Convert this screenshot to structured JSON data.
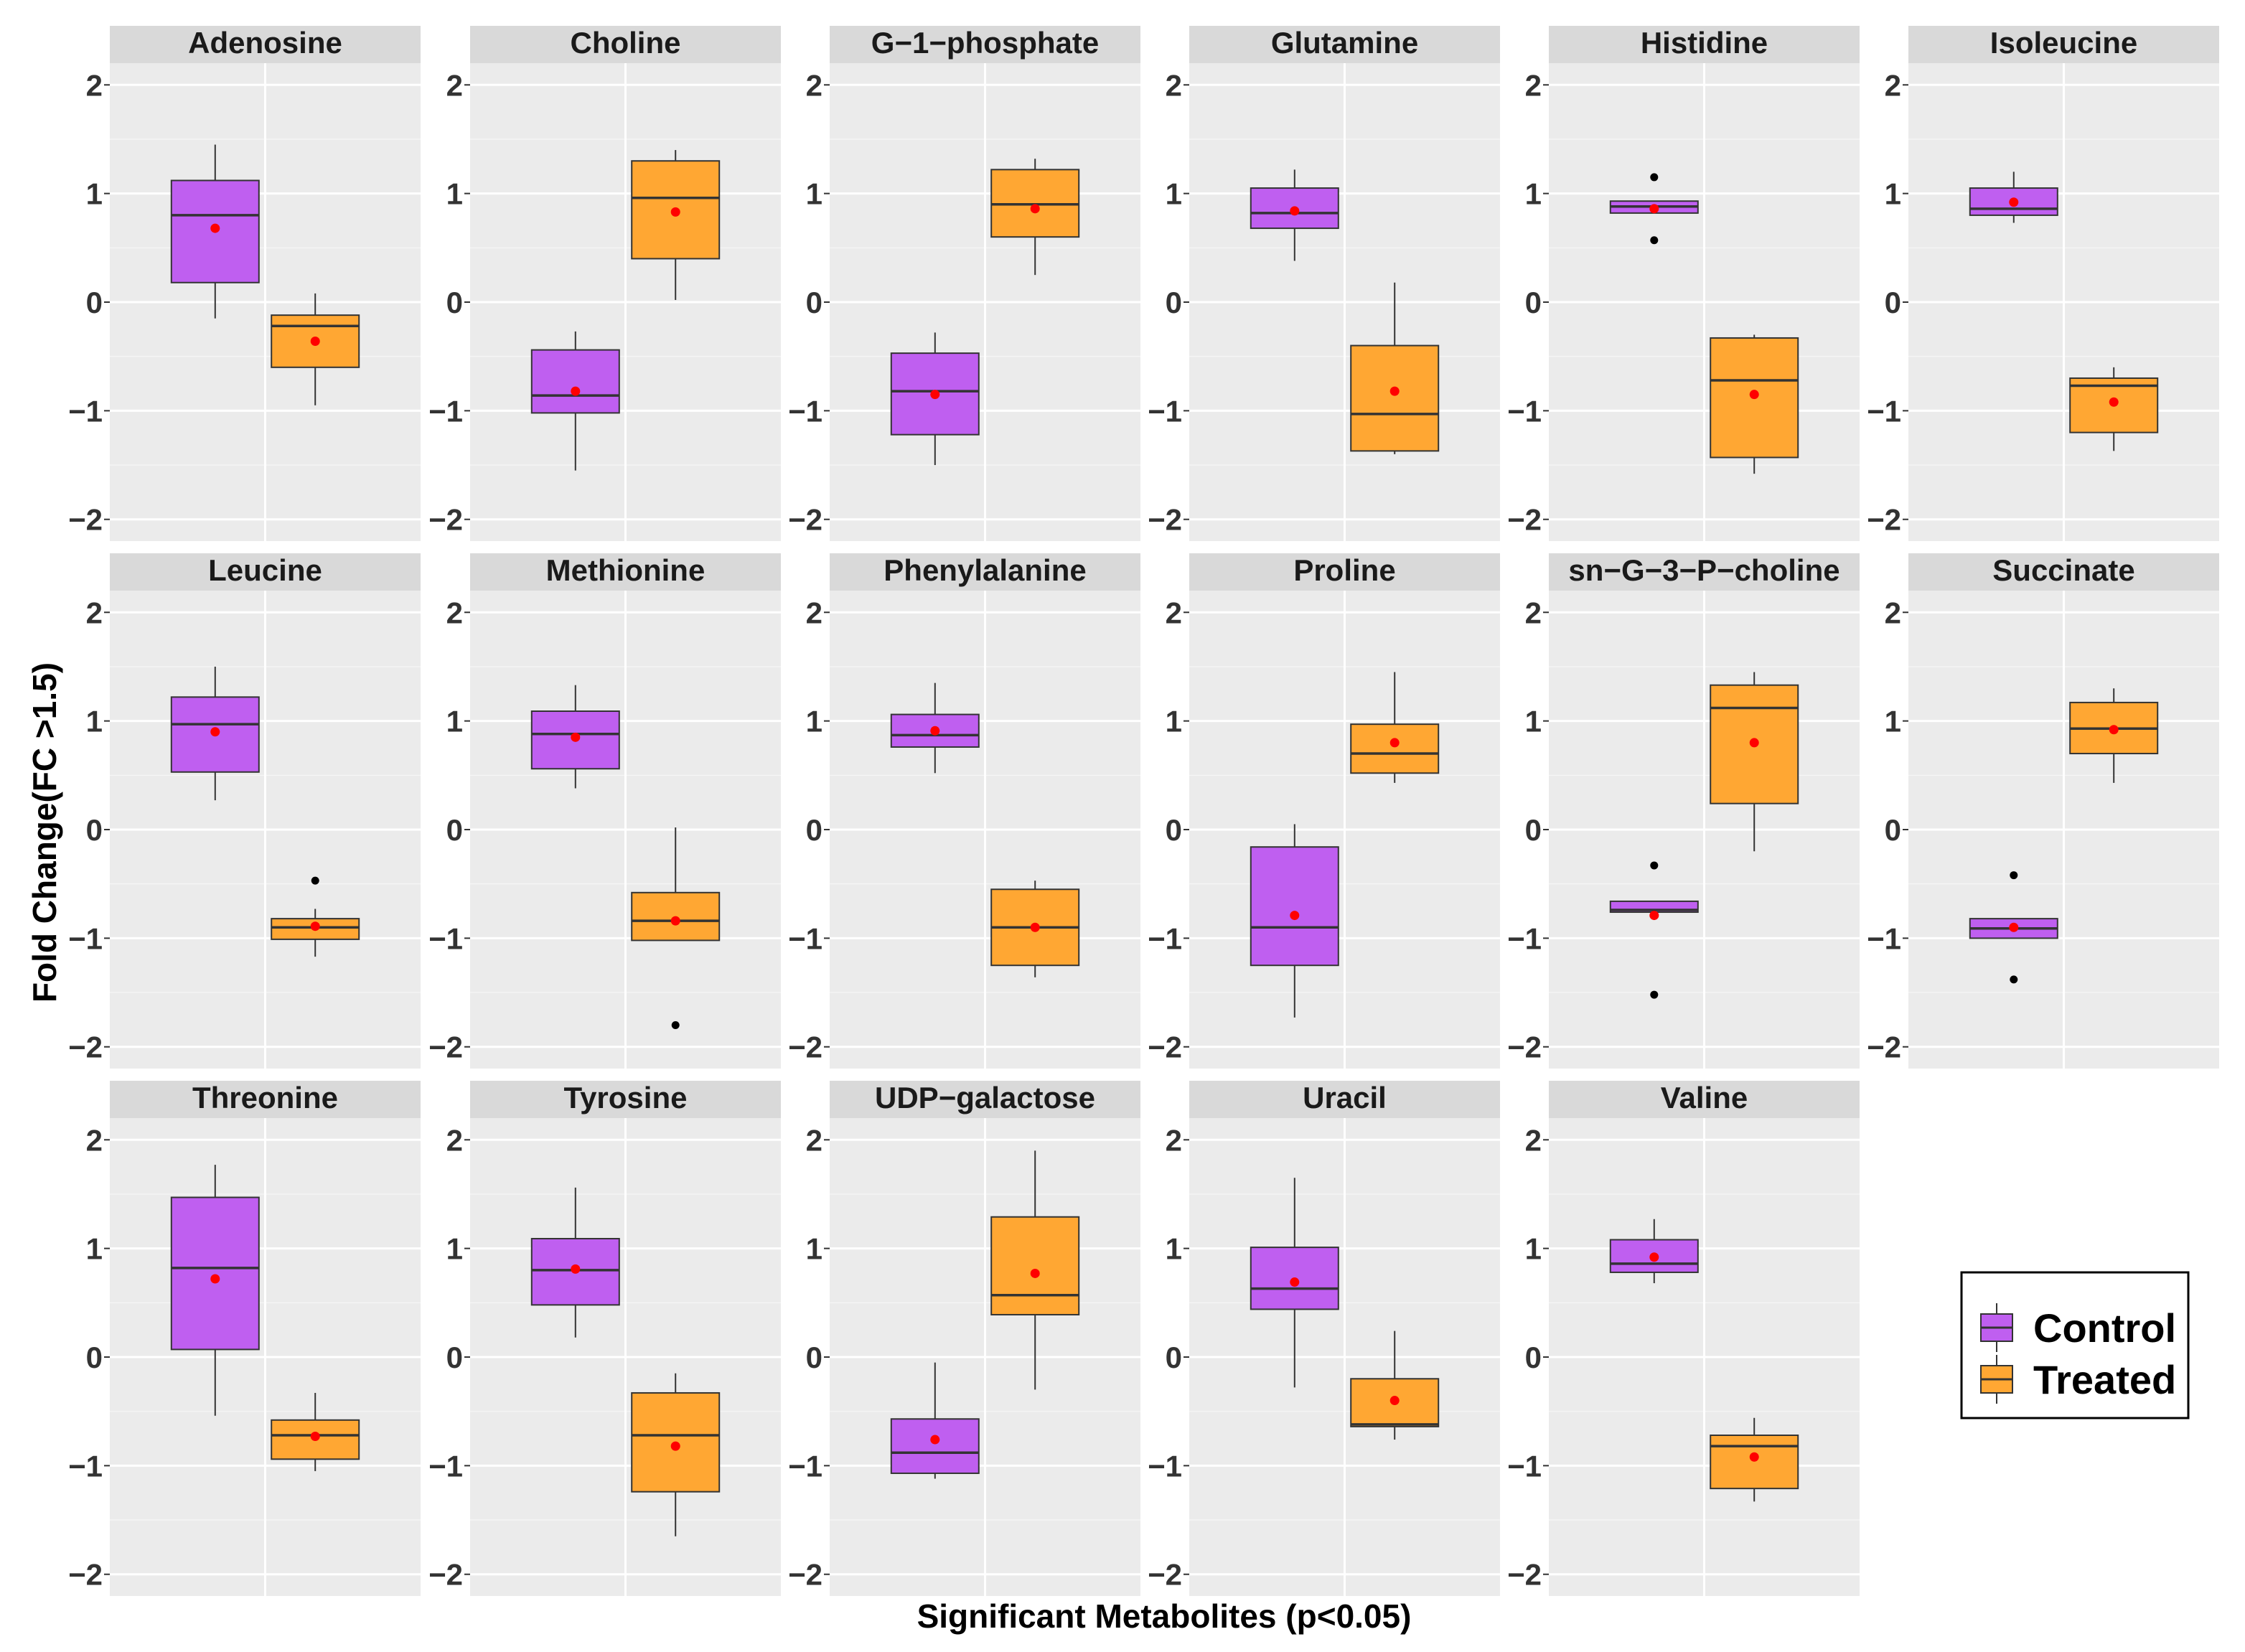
{
  "chart_data": {
    "type": "boxplot",
    "layout": "facet-grid",
    "xlabel": "Significant Metabolites (p<0.05)",
    "ylabel": "Fold Change(FC >1.5)",
    "ylim": [
      -2.2,
      2.2
    ],
    "y_ticks": [
      -2,
      -1,
      0,
      1,
      2
    ],
    "tick_labels": [
      "−2",
      "−1",
      "0",
      "1",
      "2"
    ],
    "grid": true,
    "legend": {
      "placement": "bottom-right",
      "entries": [
        {
          "name": "Control",
          "color": "#bf5ff0"
        },
        {
          "name": "Treated",
          "color": "#ffa733"
        }
      ]
    },
    "colors": {
      "control": "#bf5ff0",
      "treated": "#ffa733",
      "panel_bg": "#ebebeb",
      "strip_bg": "#d9d9d9",
      "mean_marker": "#ff0000"
    },
    "facets": [
      {
        "title": "Adenosine",
        "groups": [
          {
            "name": "Control",
            "whisker_low": -0.15,
            "q1": 0.18,
            "median": 0.8,
            "q3": 1.12,
            "whisker_high": 1.45,
            "mean": 0.68,
            "outliers": []
          },
          {
            "name": "Treated",
            "whisker_low": -0.95,
            "q1": -0.6,
            "median": -0.22,
            "q3": -0.12,
            "whisker_high": 0.08,
            "mean": -0.36,
            "outliers": []
          }
        ]
      },
      {
        "title": "Choline",
        "groups": [
          {
            "name": "Control",
            "whisker_low": -1.55,
            "q1": -1.02,
            "median": -0.86,
            "q3": -0.44,
            "whisker_high": -0.27,
            "mean": -0.82,
            "outliers": []
          },
          {
            "name": "Treated",
            "whisker_low": 0.02,
            "q1": 0.4,
            "median": 0.96,
            "q3": 1.3,
            "whisker_high": 1.4,
            "mean": 0.83,
            "outliers": []
          }
        ]
      },
      {
        "title": "G−1−phosphate",
        "groups": [
          {
            "name": "Control",
            "whisker_low": -1.5,
            "q1": -1.22,
            "median": -0.82,
            "q3": -0.47,
            "whisker_high": -0.28,
            "mean": -0.85,
            "outliers": []
          },
          {
            "name": "Treated",
            "whisker_low": 0.25,
            "q1": 0.6,
            "median": 0.9,
            "q3": 1.22,
            "whisker_high": 1.32,
            "mean": 0.86,
            "outliers": []
          }
        ]
      },
      {
        "title": "Glutamine",
        "groups": [
          {
            "name": "Control",
            "whisker_low": 0.38,
            "q1": 0.68,
            "median": 0.82,
            "q3": 1.05,
            "whisker_high": 1.22,
            "mean": 0.84,
            "outliers": []
          },
          {
            "name": "Treated",
            "whisker_low": -1.4,
            "q1": -1.37,
            "median": -1.03,
            "q3": -0.4,
            "whisker_high": 0.18,
            "mean": -0.82,
            "outliers": []
          }
        ]
      },
      {
        "title": "Histidine",
        "groups": [
          {
            "name": "Control",
            "whisker_low": 0.82,
            "q1": 0.82,
            "median": 0.88,
            "q3": 0.93,
            "whisker_high": 0.93,
            "mean": 0.86,
            "outliers": [
              1.15,
              0.57
            ]
          },
          {
            "name": "Treated",
            "whisker_low": -1.58,
            "q1": -1.43,
            "median": -0.72,
            "q3": -0.33,
            "whisker_high": -0.3,
            "mean": -0.85,
            "outliers": []
          }
        ]
      },
      {
        "title": "Isoleucine",
        "groups": [
          {
            "name": "Control",
            "whisker_low": 0.73,
            "q1": 0.8,
            "median": 0.86,
            "q3": 1.05,
            "whisker_high": 1.2,
            "mean": 0.92,
            "outliers": []
          },
          {
            "name": "Treated",
            "whisker_low": -1.37,
            "q1": -1.2,
            "median": -0.77,
            "q3": -0.7,
            "whisker_high": -0.6,
            "mean": -0.92,
            "outliers": []
          }
        ]
      },
      {
        "title": "Leucine",
        "groups": [
          {
            "name": "Control",
            "whisker_low": 0.27,
            "q1": 0.53,
            "median": 0.97,
            "q3": 1.22,
            "whisker_high": 1.5,
            "mean": 0.9,
            "outliers": []
          },
          {
            "name": "Treated",
            "whisker_low": -1.17,
            "q1": -1.01,
            "median": -0.9,
            "q3": -0.82,
            "whisker_high": -0.73,
            "mean": -0.89,
            "outliers": [
              -0.47
            ]
          }
        ]
      },
      {
        "title": "Methionine",
        "groups": [
          {
            "name": "Control",
            "whisker_low": 0.38,
            "q1": 0.56,
            "median": 0.88,
            "q3": 1.09,
            "whisker_high": 1.33,
            "mean": 0.85,
            "outliers": []
          },
          {
            "name": "Treated",
            "whisker_low": -1.02,
            "q1": -1.02,
            "median": -0.84,
            "q3": -0.58,
            "whisker_high": 0.02,
            "mean": -0.84,
            "outliers": [
              -1.8
            ]
          }
        ]
      },
      {
        "title": "Phenylalanine",
        "groups": [
          {
            "name": "Control",
            "whisker_low": 0.52,
            "q1": 0.76,
            "median": 0.87,
            "q3": 1.06,
            "whisker_high": 1.35,
            "mean": 0.91,
            "outliers": []
          },
          {
            "name": "Treated",
            "whisker_low": -1.36,
            "q1": -1.25,
            "median": -0.9,
            "q3": -0.55,
            "whisker_high": -0.47,
            "mean": -0.9,
            "outliers": []
          }
        ]
      },
      {
        "title": "Proline",
        "groups": [
          {
            "name": "Control",
            "whisker_low": -1.73,
            "q1": -1.25,
            "median": -0.9,
            "q3": -0.16,
            "whisker_high": 0.05,
            "mean": -0.79,
            "outliers": []
          },
          {
            "name": "Treated",
            "whisker_low": 0.43,
            "q1": 0.52,
            "median": 0.7,
            "q3": 0.97,
            "whisker_high": 1.45,
            "mean": 0.8,
            "outliers": []
          }
        ]
      },
      {
        "title": "sn−G−3−P−choline",
        "groups": [
          {
            "name": "Control",
            "whisker_low": -0.76,
            "q1": -0.76,
            "median": -0.74,
            "q3": -0.66,
            "whisker_high": -0.66,
            "mean": -0.79,
            "outliers": [
              -0.33,
              -1.52
            ]
          },
          {
            "name": "Treated",
            "whisker_low": -0.2,
            "q1": 0.24,
            "median": 1.12,
            "q3": 1.33,
            "whisker_high": 1.45,
            "mean": 0.8,
            "outliers": []
          }
        ]
      },
      {
        "title": "Succinate",
        "groups": [
          {
            "name": "Control",
            "whisker_low": -1.0,
            "q1": -1.0,
            "median": -0.91,
            "q3": -0.82,
            "whisker_high": -0.82,
            "mean": -0.9,
            "outliers": [
              -0.42,
              -1.38
            ]
          },
          {
            "name": "Treated",
            "whisker_low": 0.43,
            "q1": 0.7,
            "median": 0.93,
            "q3": 1.17,
            "whisker_high": 1.3,
            "mean": 0.92,
            "outliers": []
          }
        ]
      },
      {
        "title": "Threonine",
        "groups": [
          {
            "name": "Control",
            "whisker_low": -0.54,
            "q1": 0.07,
            "median": 0.82,
            "q3": 1.47,
            "whisker_high": 1.77,
            "mean": 0.72,
            "outliers": []
          },
          {
            "name": "Treated",
            "whisker_low": -1.05,
            "q1": -0.94,
            "median": -0.72,
            "q3": -0.58,
            "whisker_high": -0.33,
            "mean": -0.73,
            "outliers": []
          }
        ]
      },
      {
        "title": "Tyrosine",
        "groups": [
          {
            "name": "Control",
            "whisker_low": 0.18,
            "q1": 0.48,
            "median": 0.8,
            "q3": 1.09,
            "whisker_high": 1.56,
            "mean": 0.81,
            "outliers": []
          },
          {
            "name": "Treated",
            "whisker_low": -1.65,
            "q1": -1.24,
            "median": -0.72,
            "q3": -0.33,
            "whisker_high": -0.15,
            "mean": -0.82,
            "outliers": []
          }
        ]
      },
      {
        "title": "UDP−galactose",
        "groups": [
          {
            "name": "Control",
            "whisker_low": -1.12,
            "q1": -1.07,
            "median": -0.88,
            "q3": -0.57,
            "whisker_high": -0.05,
            "mean": -0.76,
            "outliers": []
          },
          {
            "name": "Treated",
            "whisker_low": -0.3,
            "q1": 0.39,
            "median": 0.57,
            "q3": 1.29,
            "whisker_high": 1.9,
            "mean": 0.77,
            "outliers": []
          }
        ]
      },
      {
        "title": "Uracil",
        "groups": [
          {
            "name": "Control",
            "whisker_low": -0.28,
            "q1": 0.44,
            "median": 0.63,
            "q3": 1.01,
            "whisker_high": 1.65,
            "mean": 0.69,
            "outliers": []
          },
          {
            "name": "Treated",
            "whisker_low": -0.76,
            "q1": -0.64,
            "median": -0.62,
            "q3": -0.2,
            "whisker_high": 0.24,
            "mean": -0.4,
            "outliers": []
          }
        ]
      },
      {
        "title": "Valine",
        "groups": [
          {
            "name": "Control",
            "whisker_low": 0.68,
            "q1": 0.78,
            "median": 0.86,
            "q3": 1.08,
            "whisker_high": 1.27,
            "mean": 0.92,
            "outliers": []
          },
          {
            "name": "Treated",
            "whisker_low": -1.33,
            "q1": -1.21,
            "median": -0.82,
            "q3": -0.72,
            "whisker_high": -0.56,
            "mean": -0.92,
            "outliers": []
          }
        ]
      }
    ]
  }
}
